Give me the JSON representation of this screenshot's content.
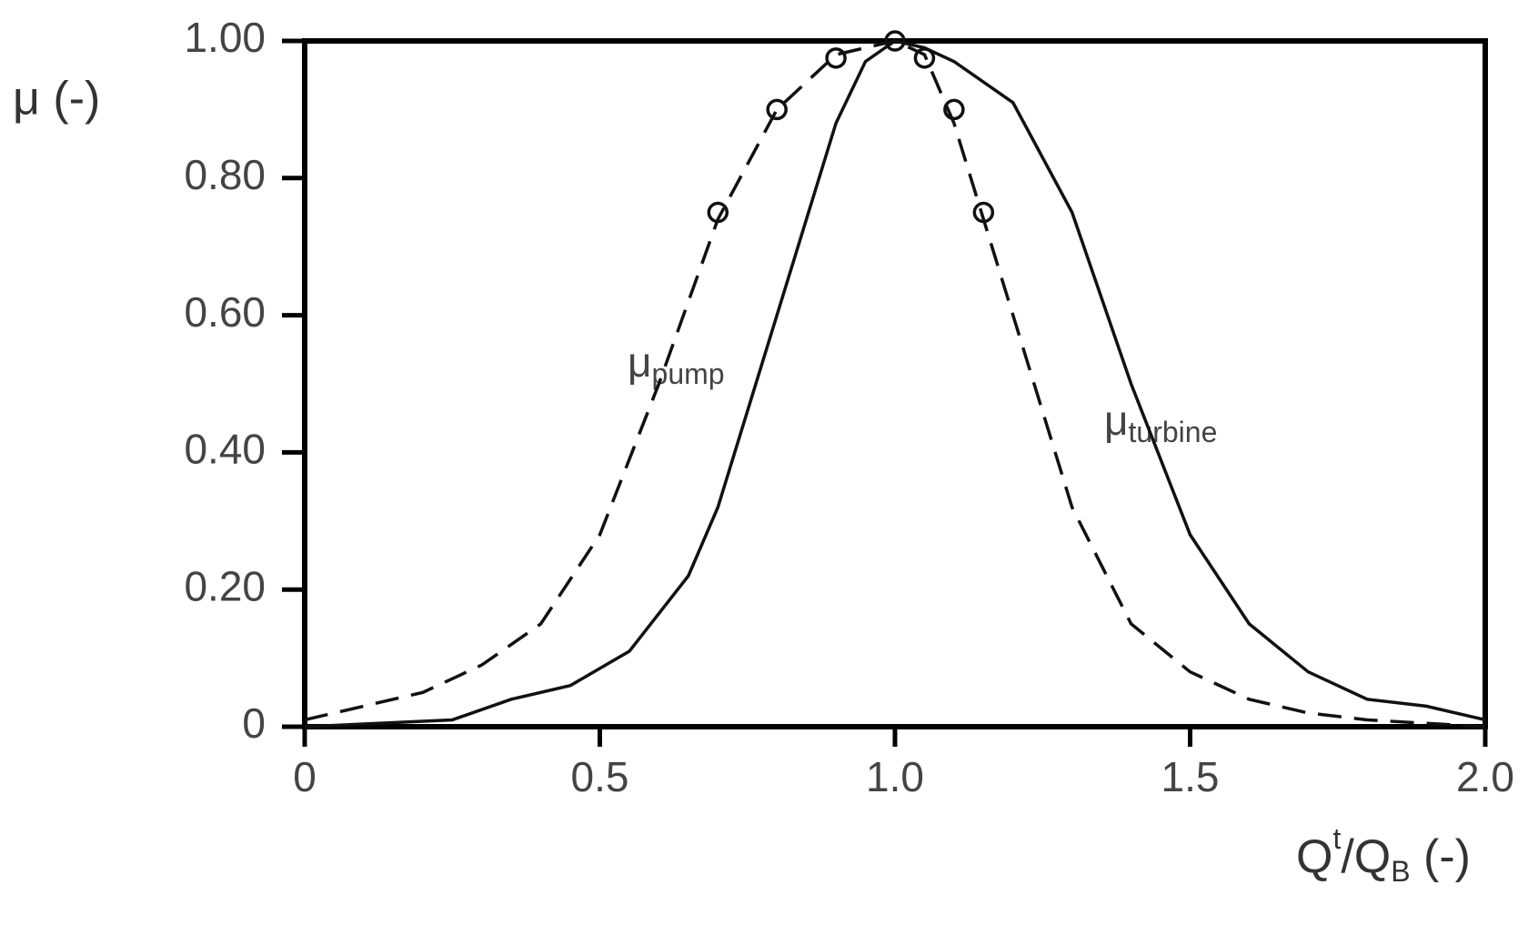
{
  "chart_data": {
    "type": "line",
    "y_label": "μ (-)",
    "x_label": {
      "base": "Q",
      "sup": "t",
      "mid": "/Q",
      "sub": "B",
      "tail": " (-)"
    },
    "annotations": [
      {
        "base": "μ",
        "sub": "pump"
      },
      {
        "base": "μ",
        "sub": "turbine"
      }
    ],
    "series": [
      {
        "type": "line",
        "dash": true,
        "color": "#111111",
        "x": [
          0,
          0.1,
          0.2,
          0.3,
          0.4,
          0.5,
          0.6,
          0.7,
          0.8,
          0.9,
          1.0,
          1.05,
          1.1,
          1.2,
          1.3,
          1.4,
          1.5,
          1.6,
          1.7,
          1.8,
          2.0
        ],
        "values": [
          0.01,
          0.03,
          0.05,
          0.09,
          0.15,
          0.28,
          0.5,
          0.74,
          0.9,
          0.98,
          1.0,
          0.98,
          0.88,
          0.6,
          0.32,
          0.15,
          0.08,
          0.04,
          0.02,
          0.01,
          0.0
        ]
      },
      {
        "type": "line",
        "dash": false,
        "color": "#111111",
        "x": [
          0,
          0.25,
          0.35,
          0.45,
          0.55,
          0.65,
          0.7,
          0.8,
          0.9,
          0.95,
          1.0,
          1.05,
          1.1,
          1.2,
          1.3,
          1.4,
          1.5,
          1.6,
          1.7,
          1.8,
          1.9,
          2.0
        ],
        "values": [
          0.0,
          0.01,
          0.04,
          0.06,
          0.11,
          0.22,
          0.32,
          0.6,
          0.88,
          0.97,
          1.0,
          0.99,
          0.97,
          0.91,
          0.75,
          0.5,
          0.28,
          0.15,
          0.08,
          0.04,
          0.03,
          0.01
        ]
      },
      {
        "type": "scatter",
        "color": "#111111",
        "x": [
          0.7,
          0.8,
          0.9,
          1.0,
          1.05,
          1.1,
          1.15
        ],
        "values": [
          0.75,
          0.9,
          0.975,
          1.0,
          0.975,
          0.9,
          0.75
        ]
      }
    ],
    "xlim": [
      0,
      2.0
    ],
    "xticks": [
      0,
      0.5,
      {
        "value": 1.0,
        "label": "1.0"
      },
      1.5,
      {
        "value": 2.0,
        "label": "2.0"
      }
    ],
    "ylim": [
      0,
      1.0
    ],
    "yticks": [
      0,
      {
        "value": 0.2,
        "label": "0.20"
      },
      {
        "value": 0.4,
        "label": "0.40"
      },
      {
        "value": 0.6,
        "label": "0.60"
      },
      {
        "value": 0.8,
        "label": "0.80"
      },
      {
        "value": 1.0,
        "label": "1.00"
      }
    ],
    "grid": false
  }
}
